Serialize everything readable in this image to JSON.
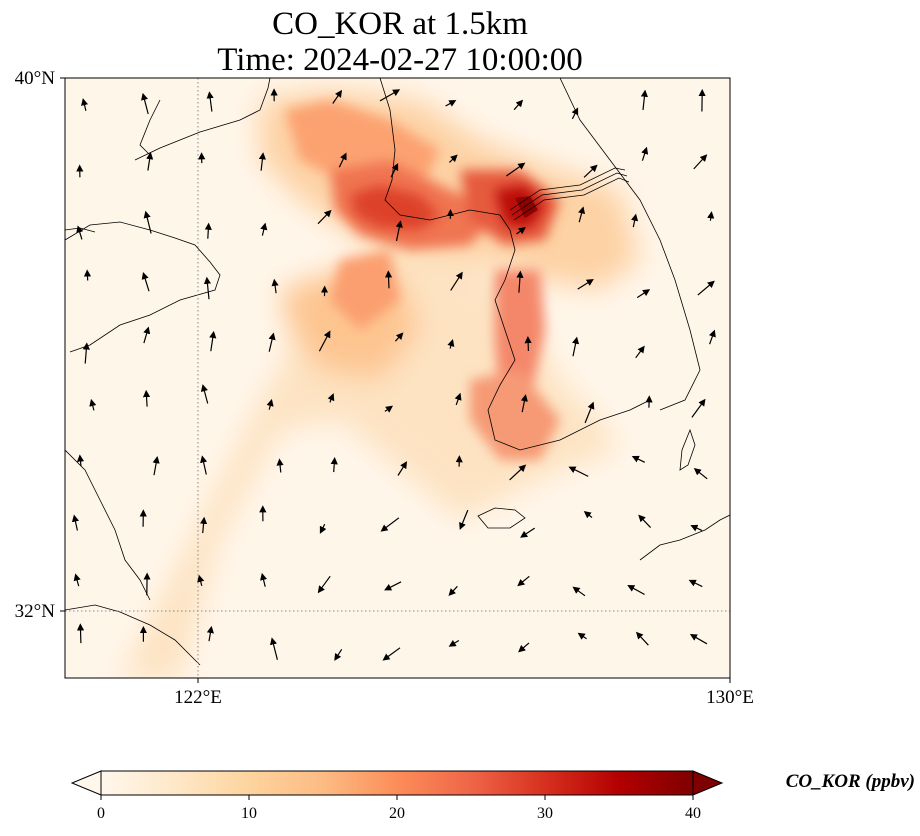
{
  "title": {
    "line1": "CO_KOR at 1.5km",
    "line2": "Time: 2024-02-27 10:00:00"
  },
  "map": {
    "extent": {
      "lon_min": 120.4,
      "lon_max": 130.0,
      "lat_min": 31.0,
      "lat_max": 40.0
    },
    "lat_ticks": [
      {
        "value": 40,
        "label": "40°N"
      },
      {
        "value": 32,
        "label": "32°N"
      }
    ],
    "lon_ticks": [
      {
        "value": 122,
        "label": "122°E"
      },
      {
        "value": 130,
        "label": "130°E"
      }
    ],
    "gridlines": {
      "style": "dotted",
      "lats": [
        32
      ],
      "lons": [
        122
      ]
    },
    "colormap": "OrRd",
    "plumes": [
      {
        "name": "bohai-plume",
        "lon": 124.2,
        "lat": 37.9,
        "value": 33
      },
      {
        "name": "pyongyang-plume",
        "lon": 127.0,
        "lat": 38.2,
        "value": 38
      },
      {
        "name": "west-coast-plume",
        "lon": 126.6,
        "lat": 36.5,
        "value": 28
      },
      {
        "name": "southwest-plume",
        "lon": 126.2,
        "lat": 34.7,
        "value": 30
      },
      {
        "name": "yellow-sea-plume",
        "lon": 124.5,
        "lat": 36.2,
        "value": 16
      }
    ]
  },
  "colorbar": {
    "min": 0,
    "max": 40,
    "ticks": [
      0,
      10,
      20,
      30,
      40
    ],
    "label": "CO_KOR (ppbv)",
    "colors": [
      "#fff7ec",
      "#fee8c8",
      "#fdd49e",
      "#fdbb84",
      "#fc8d59",
      "#ef6548",
      "#d7301f",
      "#b30000",
      "#7f0000"
    ]
  }
}
